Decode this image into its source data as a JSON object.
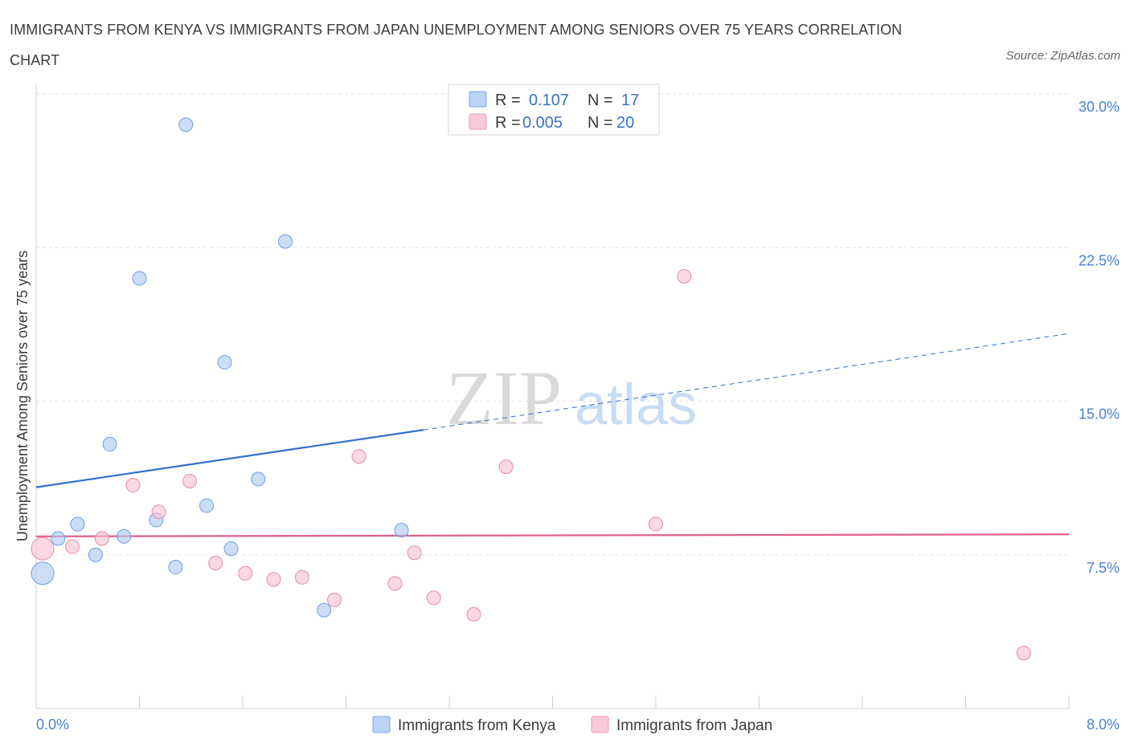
{
  "title": "IMMIGRANTS FROM KENYA VS IMMIGRANTS FROM JAPAN UNEMPLOYMENT AMONG SENIORS OVER 75 YEARS CORRELATION CHART",
  "source": "Source: ZipAtlas.com",
  "watermark": {
    "zip": "ZIP",
    "atlas": "atlas"
  },
  "chart_data": {
    "type": "scatter",
    "title": "IMMIGRANTS FROM KENYA VS IMMIGRANTS FROM JAPAN UNEMPLOYMENT AMONG SENIORS OVER 75 YEARS CORRELATION CHART",
    "xlabel": "",
    "ylabel": "Unemployment Among Seniors over 75 years",
    "xlim": [
      0,
      8
    ],
    "ylim": [
      0,
      30
    ],
    "x_tick_labels": [
      "0.0%",
      "8.0%"
    ],
    "y_ticks": [
      7.5,
      15,
      22.5,
      30
    ],
    "y_tick_labels": [
      "7.5%",
      "15.0%",
      "22.5%",
      "30.0%"
    ],
    "grid": true,
    "legend": {
      "position": "top-center",
      "entries": [
        {
          "r_label": "R =",
          "r_value": "0.107",
          "n_label": "N =",
          "n_value": "17"
        },
        {
          "r_label": "R =",
          "r_value": "0.005",
          "n_label": "N =",
          "n_value": "20"
        }
      ]
    },
    "series": [
      {
        "name": "Immigrants from Kenya",
        "color": "#a9c8f0",
        "stroke": "#6e9fe0",
        "line_color": "#2f6fd0",
        "trend": {
          "x0": 0,
          "y0": 10.8,
          "x1": 3.0,
          "y1": 13.6,
          "dash_to_x": 8.0,
          "dash_to_y": 18.3
        },
        "points": [
          {
            "x": 0.05,
            "y": 6.6,
            "size": "large"
          },
          {
            "x": 0.17,
            "y": 8.3
          },
          {
            "x": 0.32,
            "y": 9.0
          },
          {
            "x": 0.46,
            "y": 7.5
          },
          {
            "x": 0.57,
            "y": 12.9
          },
          {
            "x": 0.68,
            "y": 8.4
          },
          {
            "x": 0.8,
            "y": 21.0
          },
          {
            "x": 0.93,
            "y": 9.2
          },
          {
            "x": 1.08,
            "y": 6.9
          },
          {
            "x": 1.16,
            "y": 28.5
          },
          {
            "x": 1.32,
            "y": 9.9
          },
          {
            "x": 1.46,
            "y": 16.9
          },
          {
            "x": 1.51,
            "y": 7.8
          },
          {
            "x": 1.72,
            "y": 11.2
          },
          {
            "x": 1.93,
            "y": 22.8
          },
          {
            "x": 2.23,
            "y": 4.8
          },
          {
            "x": 2.83,
            "y": 8.7
          }
        ]
      },
      {
        "name": "Immigrants from Japan",
        "color": "#f7bfd0",
        "stroke": "#e88aa8",
        "line_color": "#e0608a",
        "trend": {
          "x0": 0,
          "y0": 8.4,
          "x1": 8.0,
          "y1": 8.5
        },
        "points": [
          {
            "x": 0.05,
            "y": 7.8,
            "size": "large"
          },
          {
            "x": 0.28,
            "y": 7.9
          },
          {
            "x": 0.51,
            "y": 8.3
          },
          {
            "x": 0.75,
            "y": 10.9
          },
          {
            "x": 0.95,
            "y": 9.6
          },
          {
            "x": 1.19,
            "y": 11.1
          },
          {
            "x": 1.39,
            "y": 7.1
          },
          {
            "x": 1.62,
            "y": 6.6
          },
          {
            "x": 1.84,
            "y": 6.3
          },
          {
            "x": 2.06,
            "y": 6.4
          },
          {
            "x": 2.31,
            "y": 5.3
          },
          {
            "x": 2.5,
            "y": 12.3
          },
          {
            "x": 2.78,
            "y": 6.1
          },
          {
            "x": 2.93,
            "y": 7.6
          },
          {
            "x": 3.08,
            "y": 5.4
          },
          {
            "x": 3.39,
            "y": 4.6
          },
          {
            "x": 3.64,
            "y": 11.8
          },
          {
            "x": 4.8,
            "y": 9.0
          },
          {
            "x": 5.02,
            "y": 21.1
          },
          {
            "x": 7.65,
            "y": 2.7
          }
        ]
      }
    ]
  }
}
